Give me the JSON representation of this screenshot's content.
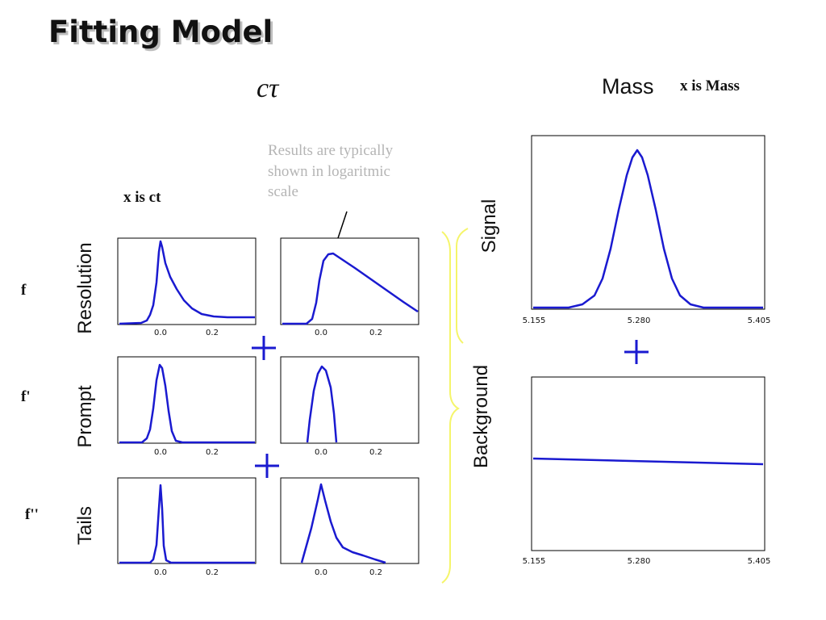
{
  "title": "Fitting Model",
  "ctau_heading": "cτ",
  "mass_heading": "Mass",
  "mass_x_note": "x is  Mass",
  "ct_x_note": "x is  ct",
  "log_note_lines": [
    "Results are  typically",
    "shown in logaritmic",
    "scale"
  ],
  "rows": [
    {
      "label": "Resolution",
      "fraction": "f"
    },
    {
      "label": "Prompt",
      "fraction": "f'"
    },
    {
      "label": "Tails",
      "fraction": "f''"
    }
  ],
  "mass_rows": {
    "signal": "Signal",
    "background": "Background"
  },
  "ct_ticks": [
    "0.0",
    "0.2"
  ],
  "mass_ticks": [
    "5.155",
    "5.280",
    "5.405"
  ],
  "plus_symbol": "+",
  "colors": {
    "curve": "#1a1ad0",
    "brace": "#f5f56a",
    "note": "#b5b5b5"
  }
}
